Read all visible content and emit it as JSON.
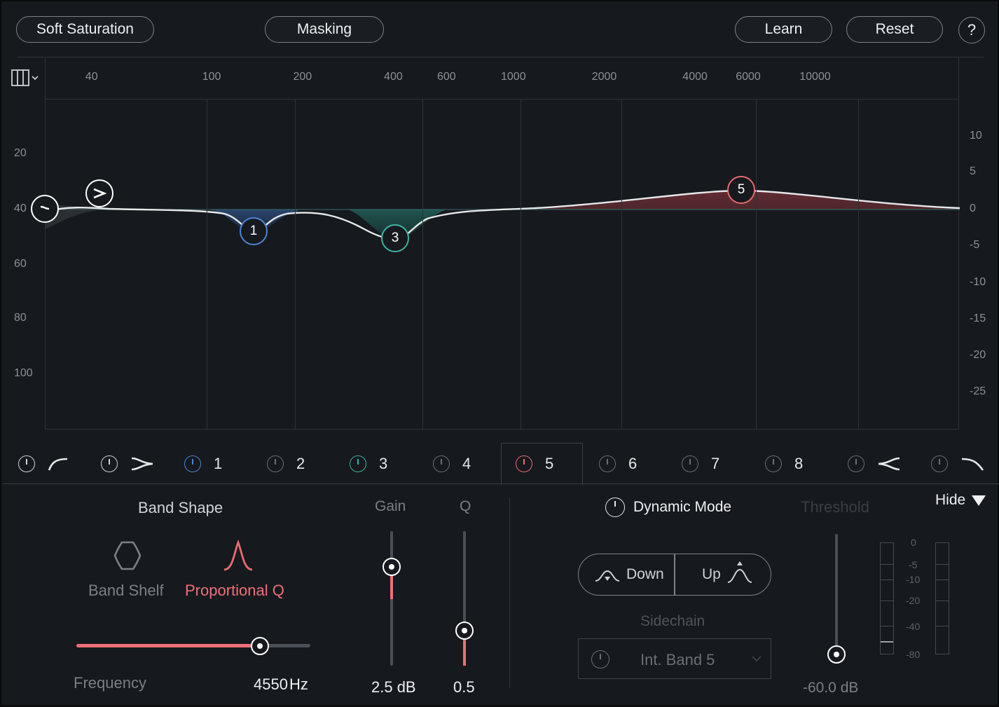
{
  "header": {
    "soft_saturation": "Soft Saturation",
    "masking": "Masking",
    "learn": "Learn",
    "reset": "Reset",
    "help": "?"
  },
  "freq_axis": [
    {
      "label": "40",
      "x": 40
    },
    {
      "label": "100",
      "x": 100
    },
    {
      "label": "200",
      "x": 200
    },
    {
      "label": "400",
      "x": 400
    },
    {
      "label": "600",
      "x": 600
    },
    {
      "label": "1000",
      "x": 1000
    },
    {
      "label": "2000",
      "x": 2000
    },
    {
      "label": "4000",
      "x": 4000
    },
    {
      "label": "6000",
      "x": 6000
    },
    {
      "label": "10000",
      "x": 10000
    }
  ],
  "db_left": [
    "20",
    "40",
    "60",
    "80",
    "100"
  ],
  "db_right": [
    "10",
    "5",
    "0",
    "-5",
    "-10",
    "-15",
    "-20",
    "-25"
  ],
  "nodes": [
    {
      "label": "1",
      "color": "#4c86d6"
    },
    {
      "label": "3",
      "color": "#3fb5a4"
    },
    {
      "label": "5",
      "color": "#e86a72"
    }
  ],
  "bands": [
    {
      "label": "1",
      "color": "#4c86d6"
    },
    {
      "label": "2",
      "color": "#6a7077"
    },
    {
      "label": "3",
      "color": "#3fb5a4"
    },
    {
      "label": "4",
      "color": "#6a7077"
    },
    {
      "label": "5",
      "color": "#e86a72"
    },
    {
      "label": "6",
      "color": "#6a7077"
    },
    {
      "label": "7",
      "color": "#6a7077"
    },
    {
      "label": "8",
      "color": "#6a7077"
    }
  ],
  "band_panel": {
    "band_shape_title": "Band Shape",
    "band_shelf": "Band Shelf",
    "proportional_q": "Proportional Q",
    "frequency_label": "Frequency",
    "frequency_value": "4550",
    "frequency_unit": "Hz",
    "gain_label": "Gain",
    "gain_value": "2.5 dB",
    "q_label": "Q",
    "q_value": "0.5"
  },
  "dynamic": {
    "mode_label": "Dynamic Mode",
    "down": "Down",
    "up": "Up",
    "sidechain": "Sidechain",
    "sidechain_value": "Int. Band 5",
    "threshold_label": "Threshold",
    "threshold_value": "-60.0 dB",
    "hide": "Hide",
    "meter_scale": [
      "0",
      "-5",
      "-10",
      "-20",
      "-40",
      "-80"
    ]
  },
  "colors": {
    "accent": "#e86a72",
    "band1": "#4c86d6",
    "band3": "#3fb5a4"
  }
}
